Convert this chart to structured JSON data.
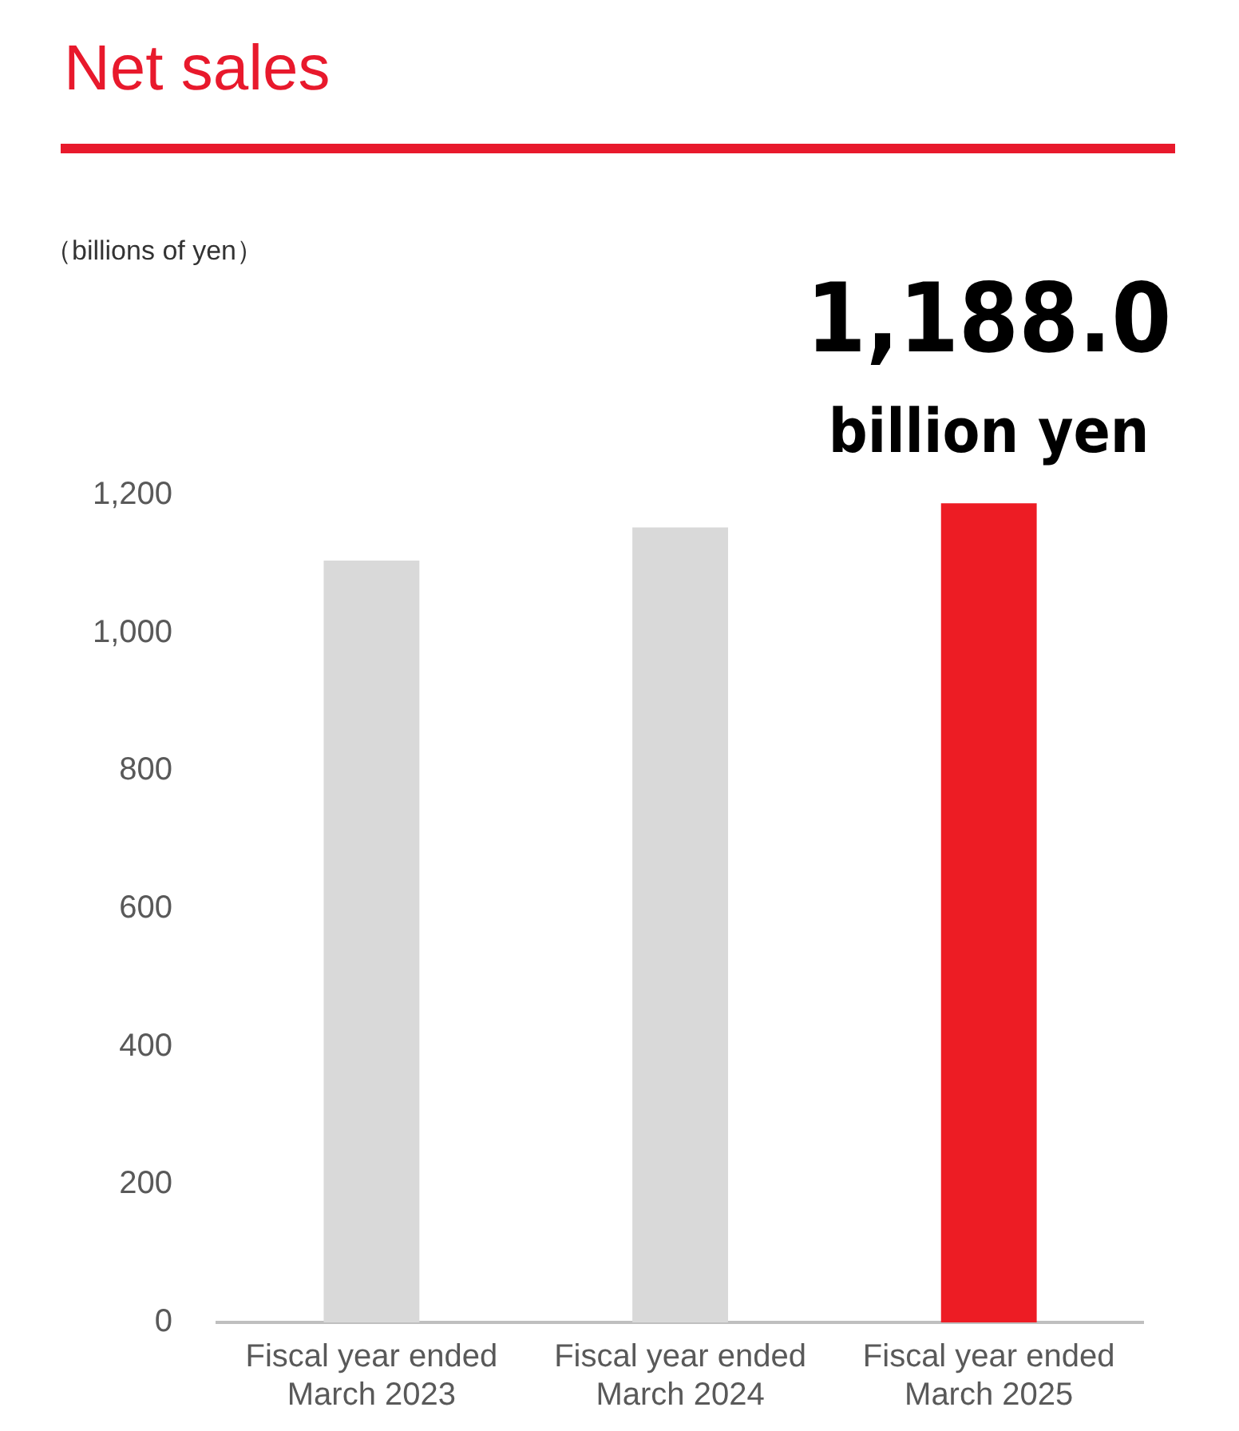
{
  "chart_data": {
    "type": "bar",
    "title": "Net sales",
    "categories": [
      "Fiscal year ended March 2023",
      "Fiscal year ended March 2024",
      "Fiscal year ended March 2025"
    ],
    "values": [
      1105,
      1153,
      1188.0
    ],
    "colors": [
      "#d9d9d9",
      "#d9d9d9",
      "#ed1c24"
    ],
    "value_labels": [
      null,
      null,
      "1,188.0"
    ],
    "annotations": [
      "（billions of yen）",
      {
        "text": "billion yen",
        "x": "Fiscal year ended March 2025",
        "y": 1188.0
      }
    ],
    "ylim": [
      0,
      1200
    ],
    "yticks": [
      {
        "value": 0,
        "label": "0"
      },
      {
        "value": 200,
        "label": "200"
      },
      {
        "value": 400,
        "label": "400"
      },
      {
        "value": 600,
        "label": "600"
      },
      {
        "value": 800,
        "label": "800"
      },
      {
        "value": 1000,
        "label": "1,000"
      },
      {
        "value": 1200,
        "label": "1,200"
      }
    ],
    "grid": false,
    "legend": false
  }
}
